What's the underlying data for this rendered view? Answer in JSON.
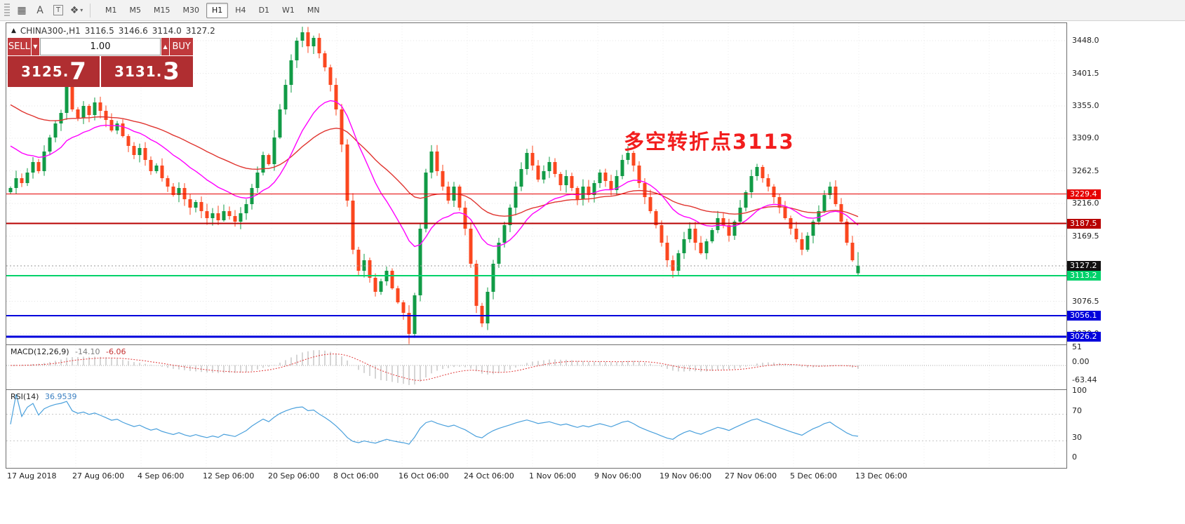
{
  "toolbar": {
    "icons": [
      {
        "name": "grid-icon",
        "glyph": "▦"
      },
      {
        "name": "text-annotation-icon",
        "glyph": "A"
      },
      {
        "name": "text-label-icon",
        "glyph": "T"
      },
      {
        "name": "objects-icon",
        "glyph": "❖"
      }
    ],
    "dropdown_glyph": "▾",
    "timeframes": [
      "M1",
      "M5",
      "M15",
      "M30",
      "H1",
      "H4",
      "D1",
      "W1",
      "MN"
    ],
    "active_timeframe": "H1"
  },
  "symbol_bar": {
    "arrow": "▲",
    "title": "CHINA300-,H1",
    "open": "3116.5",
    "high": "3146.6",
    "low": "3114.0",
    "close": "3127.2"
  },
  "trade_panel": {
    "sell_label": "SELL",
    "buy_label": "BUY",
    "volume": "1.00",
    "dropdown_glyph": "▼",
    "up_glyph": "▲",
    "sell_price_main": "3125.",
    "sell_price_big": "7",
    "buy_price_main": "3131.",
    "buy_price_big": "3",
    "button_color": "#c0393c",
    "price_bg_color": "#b02e31"
  },
  "annotation": {
    "text": "多空转折点3113",
    "color": "#f21d1d"
  },
  "price_axis": {
    "ticks": [
      3448.0,
      3401.5,
      3355.0,
      3309.0,
      3262.5,
      3216.0,
      3169.5,
      3123.0,
      3076.5,
      3030.0
    ]
  },
  "levels": [
    {
      "value": 3229.4,
      "label": "3229.4",
      "color": "#e60000",
      "width": 1
    },
    {
      "value": 3187.5,
      "label": "3187.5",
      "color": "#b80000",
      "width": 2
    },
    {
      "value": 3113.2,
      "label": "3113.2",
      "color": "#00d26a",
      "width": 2
    },
    {
      "value": 3056.1,
      "label": "3056.1",
      "color": "#0000dc",
      "width": 2
    },
    {
      "value": 3026.2,
      "label": "3026.2",
      "color": "#0000dc",
      "width": 3
    }
  ],
  "current_price": {
    "value": 3127.2,
    "label": "3127.2",
    "tag_color": "#111111"
  },
  "time_axis": [
    "17 Aug 2018",
    "27 Aug 06:00",
    "4 Sep 06:00",
    "12 Sep 06:00",
    "20 Sep 06:00",
    "8 Oct 06:00",
    "16 Oct 06:00",
    "24 Oct 06:00",
    "1 Nov 06:00",
    "9 Nov 06:00",
    "19 Nov 06:00",
    "27 Nov 06:00",
    "5 Dec 06:00",
    "13 Dec 06:00"
  ],
  "macd": {
    "label": "MACD(12,26,9)",
    "main_value": "-14.10",
    "signal_value": "-6.06",
    "params": {
      "fast": 12,
      "slow": 26,
      "signal": 9
    },
    "axis": [
      {
        "text": "51",
        "value": 51
      },
      {
        "text": "0.00",
        "value": 0
      },
      {
        "text": "-63.44",
        "value": -63.44
      }
    ]
  },
  "rsi": {
    "label": "RSI(14)",
    "value": "36.9539",
    "period": 14,
    "levels": [
      70,
      30
    ],
    "axis": [
      {
        "text": "100",
        "value": 100
      },
      {
        "text": "70",
        "value": 70
      },
      {
        "text": "30",
        "value": 30
      },
      {
        "text": "0",
        "value": 0
      }
    ]
  },
  "chart_data": {
    "type": "candlestick",
    "symbol": "CHINA300-",
    "timeframe": "H1",
    "ylim": [
      3015,
      3473
    ],
    "last_ohlc": {
      "open": 3116.5,
      "high": 3146.6,
      "low": 3114.0,
      "close": 3127.2
    },
    "closes": [
      3238,
      3252,
      3245,
      3260,
      3275,
      3262,
      3290,
      3310,
      3330,
      3345,
      3385,
      3350,
      3338,
      3355,
      3342,
      3360,
      3348,
      3335,
      3320,
      3330,
      3312,
      3298,
      3285,
      3295,
      3278,
      3262,
      3270,
      3252,
      3240,
      3228,
      3238,
      3222,
      3210,
      3218,
      3205,
      3195,
      3202,
      3192,
      3205,
      3198,
      3190,
      3202,
      3215,
      3238,
      3260,
      3285,
      3272,
      3310,
      3350,
      3385,
      3420,
      3448,
      3460,
      3440,
      3452,
      3430,
      3410,
      3385,
      3350,
      3300,
      3220,
      3150,
      3120,
      3135,
      3110,
      3090,
      3105,
      3120,
      3095,
      3075,
      3060,
      3030,
      3085,
      3180,
      3260,
      3290,
      3262,
      3240,
      3220,
      3240,
      3210,
      3180,
      3130,
      3070,
      3045,
      3090,
      3130,
      3160,
      3185,
      3210,
      3240,
      3265,
      3288,
      3270,
      3250,
      3262,
      3275,
      3258,
      3242,
      3255,
      3238,
      3222,
      3240,
      3228,
      3245,
      3260,
      3248,
      3235,
      3255,
      3278,
      3288,
      3270,
      3245,
      3225,
      3205,
      3185,
      3160,
      3135,
      3120,
      3145,
      3165,
      3180,
      3160,
      3145,
      3162,
      3178,
      3195,
      3185,
      3170,
      3190,
      3210,
      3232,
      3255,
      3268,
      3252,
      3240,
      3225,
      3210,
      3195,
      3180,
      3165,
      3150,
      3170,
      3190,
      3205,
      3228,
      3240,
      3215,
      3190,
      3160,
      3135,
      3127.2
    ],
    "colors": {
      "bull": "#119b46",
      "bear": "#fb471f",
      "ma_medium": "#ff00ff",
      "ma_slow": "#e03530",
      "rsi_line": "#4aa0dc",
      "macd_bar": "#c4c4c4",
      "macd_signal": "#e03a3a"
    }
  }
}
